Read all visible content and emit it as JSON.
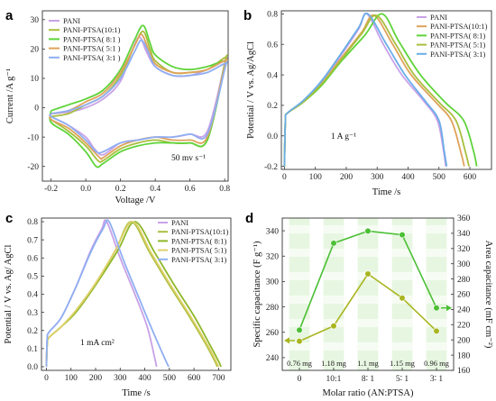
{
  "chart_data": [
    {
      "panel": "a",
      "type": "line",
      "xlabel": "Voltage /V",
      "ylabel": "Current /A g⁻¹",
      "xlim": [
        -0.25,
        0.82
      ],
      "ylim": [
        -25,
        33
      ],
      "xticks": [
        -0.2,
        0.0,
        0.2,
        0.4,
        0.6,
        0.8
      ],
      "yticks": [
        -20,
        -10,
        0,
        10,
        20,
        30
      ],
      "annotation": "50 mv s⁻¹",
      "legend_position": "top-left",
      "series": [
        {
          "name": "PANI",
          "color": "#c9a1e8",
          "upper": [
            [
              -0.2,
              -2
            ],
            [
              -0.1,
              -1.5
            ],
            [
              0.0,
              0
            ],
            [
              0.1,
              3
            ],
            [
              0.2,
              9
            ],
            [
              0.27,
              20
            ],
            [
              0.31,
              24
            ],
            [
              0.35,
              19
            ],
            [
              0.4,
              14
            ],
            [
              0.5,
              11
            ],
            [
              0.6,
              11
            ],
            [
              0.7,
              13
            ],
            [
              0.8,
              16
            ]
          ],
          "lower": [
            [
              0.8,
              15
            ],
            [
              0.7,
              -8
            ],
            [
              0.6,
              -9
            ],
            [
              0.5,
              -10
            ],
            [
              0.4,
              -10
            ],
            [
              0.3,
              -11
            ],
            [
              0.2,
              -12
            ],
            [
              0.1,
              -16
            ],
            [
              0.05,
              -14
            ],
            [
              0.0,
              -10
            ],
            [
              -0.1,
              -6
            ],
            [
              -0.2,
              -3
            ]
          ]
        },
        {
          "name": "PANI-PTSA(10:1)",
          "color": "#a8bf3c",
          "upper": [
            [
              -0.2,
              -3
            ],
            [
              -0.1,
              -2
            ],
            [
              0.0,
              1
            ],
            [
              0.1,
              4
            ],
            [
              0.2,
              11
            ],
            [
              0.28,
              21
            ],
            [
              0.33,
              26
            ],
            [
              0.37,
              20
            ],
            [
              0.4,
              16
            ],
            [
              0.5,
              12
            ],
            [
              0.6,
              12
            ],
            [
              0.7,
              13
            ],
            [
              0.8,
              17
            ]
          ],
          "lower": [
            [
              0.8,
              15
            ],
            [
              0.7,
              -11
            ],
            [
              0.6,
              -12
            ],
            [
              0.5,
              -12
            ],
            [
              0.4,
              -11
            ],
            [
              0.3,
              -12
            ],
            [
              0.2,
              -14
            ],
            [
              0.1,
              -18
            ],
            [
              0.07,
              -18
            ],
            [
              0.0,
              -13
            ],
            [
              -0.1,
              -8
            ],
            [
              -0.2,
              -4
            ]
          ]
        },
        {
          "name": "PANI-PTSA( 8:1 )",
          "color": "#5fd43a",
          "upper": [
            [
              -0.2,
              -1
            ],
            [
              -0.1,
              1
            ],
            [
              0.0,
              3
            ],
            [
              0.1,
              6
            ],
            [
              0.2,
              13
            ],
            [
              0.28,
              23
            ],
            [
              0.33,
              28
            ],
            [
              0.37,
              22
            ],
            [
              0.4,
              18
            ],
            [
              0.5,
              14
            ],
            [
              0.6,
              13
            ],
            [
              0.7,
              14
            ],
            [
              0.8,
              16
            ]
          ],
          "lower": [
            [
              0.8,
              14
            ],
            [
              0.7,
              -11
            ],
            [
              0.6,
              -12
            ],
            [
              0.5,
              -12
            ],
            [
              0.4,
              -12
            ],
            [
              0.3,
              -13
            ],
            [
              0.2,
              -15
            ],
            [
              0.1,
              -19
            ],
            [
              0.06,
              -20
            ],
            [
              0.0,
              -15
            ],
            [
              -0.1,
              -9
            ],
            [
              -0.2,
              -5
            ]
          ]
        },
        {
          "name": "PANI-PTSA( 5:1 )",
          "color": "#dfa25a",
          "upper": [
            [
              -0.2,
              -2
            ],
            [
              -0.1,
              -1
            ],
            [
              0.0,
              2
            ],
            [
              0.1,
              5
            ],
            [
              0.2,
              12
            ],
            [
              0.28,
              21
            ],
            [
              0.32,
              25
            ],
            [
              0.36,
              20
            ],
            [
              0.4,
              15
            ],
            [
              0.5,
              12
            ],
            [
              0.6,
              12
            ],
            [
              0.7,
              13
            ],
            [
              0.8,
              16
            ]
          ],
          "lower": [
            [
              0.8,
              14
            ],
            [
              0.7,
              -10
            ],
            [
              0.6,
              -11
            ],
            [
              0.5,
              -11
            ],
            [
              0.4,
              -10
            ],
            [
              0.3,
              -11
            ],
            [
              0.2,
              -13
            ],
            [
              0.1,
              -17
            ],
            [
              0.08,
              -17
            ],
            [
              0.0,
              -12
            ],
            [
              -0.1,
              -7
            ],
            [
              -0.2,
              -4
            ]
          ]
        },
        {
          "name": "PANI-PTSA( 3:1 )",
          "color": "#8faef2",
          "upper": [
            [
              -0.2,
              -2
            ],
            [
              -0.1,
              -1
            ],
            [
              0.0,
              1
            ],
            [
              0.1,
              4
            ],
            [
              0.2,
              10
            ],
            [
              0.28,
              19
            ],
            [
              0.32,
              23
            ],
            [
              0.36,
              19
            ],
            [
              0.4,
              14
            ],
            [
              0.5,
              11
            ],
            [
              0.6,
              11
            ],
            [
              0.7,
              12
            ],
            [
              0.8,
              15
            ]
          ],
          "lower": [
            [
              0.8,
              13
            ],
            [
              0.7,
              -9
            ],
            [
              0.6,
              -9
            ],
            [
              0.5,
              -10
            ],
            [
              0.4,
              -10
            ],
            [
              0.3,
              -11
            ],
            [
              0.2,
              -12
            ],
            [
              0.1,
              -15
            ],
            [
              0.06,
              -15
            ],
            [
              0.0,
              -11
            ],
            [
              -0.1,
              -6
            ],
            [
              -0.2,
              -3
            ]
          ]
        }
      ]
    },
    {
      "panel": "b",
      "type": "line",
      "xlabel": "Time /s",
      "ylabel": "Potential / V vs. Ag/AgCl",
      "xlim": [
        -10,
        670
      ],
      "ylim": [
        -0.22,
        0.82
      ],
      "xticks": [
        0,
        100,
        200,
        300,
        400,
        500,
        600
      ],
      "yticks": [
        -0.2,
        0.0,
        0.2,
        0.4,
        0.6,
        0.8
      ],
      "annotation": "1 A g⁻¹",
      "legend_position": "top-right",
      "series": [
        {
          "name": "PANI",
          "color": "#c9a1e8",
          "x": [
            0,
            3,
            10,
            60,
            120,
            180,
            240,
            267,
            320,
            380,
            450,
            495,
            515,
            522
          ],
          "y": [
            -0.2,
            0.1,
            0.15,
            0.22,
            0.35,
            0.52,
            0.7,
            0.8,
            0.6,
            0.4,
            0.23,
            0.1,
            -0.1,
            -0.2
          ]
        },
        {
          "name": "PANI-PTSA(10:1)",
          "color": "#dfa25a",
          "x": [
            0,
            3,
            10,
            60,
            120,
            180,
            250,
            290,
            350,
            410,
            490,
            540,
            570,
            582
          ],
          "y": [
            -0.2,
            0.1,
            0.15,
            0.22,
            0.34,
            0.5,
            0.68,
            0.79,
            0.6,
            0.4,
            0.22,
            0.1,
            -0.1,
            -0.2
          ]
        },
        {
          "name": "PANI-PTSA( 8:1)",
          "color": "#5fd43a",
          "x": [
            0,
            3,
            10,
            60,
            120,
            180,
            260,
            316,
            370,
            440,
            520,
            580,
            612,
            622
          ],
          "y": [
            -0.2,
            0.1,
            0.15,
            0.22,
            0.33,
            0.48,
            0.66,
            0.8,
            0.62,
            0.4,
            0.22,
            0.1,
            -0.1,
            -0.2
          ]
        },
        {
          "name": "PANI-PTSA( 5:1)",
          "color": "#a8bf3c",
          "x": [
            0,
            3,
            10,
            60,
            120,
            180,
            250,
            298,
            360,
            420,
            500,
            555,
            585,
            597
          ],
          "y": [
            -0.2,
            0.1,
            0.15,
            0.22,
            0.34,
            0.49,
            0.67,
            0.79,
            0.6,
            0.4,
            0.22,
            0.1,
            -0.1,
            -0.2
          ]
        },
        {
          "name": "PANI-PTSA( 3:1)",
          "color": "#6aaee8",
          "x": [
            0,
            3,
            10,
            60,
            120,
            180,
            240,
            270,
            330,
            390,
            455,
            500,
            517,
            525
          ],
          "y": [
            -0.2,
            0.1,
            0.15,
            0.23,
            0.36,
            0.53,
            0.71,
            0.8,
            0.6,
            0.4,
            0.23,
            0.1,
            -0.1,
            -0.2
          ]
        }
      ]
    },
    {
      "panel": "c",
      "type": "line",
      "xlabel": "Time /s",
      "ylabel": "Potential / V vs. Ag/ AgCl",
      "xlim": [
        -20,
        750
      ],
      "ylim": [
        -0.02,
        0.82
      ],
      "xticks": [
        0,
        100,
        200,
        300,
        400,
        500,
        600,
        700
      ],
      "yticks": [
        0.0,
        0.1,
        0.2,
        0.3,
        0.4,
        0.5,
        0.6,
        0.7,
        0.8
      ],
      "annotation": "1 mA cm²",
      "legend_position": "top-right",
      "series": [
        {
          "name": "PANI",
          "color": "#c9a1e8",
          "x": [
            0,
            3,
            10,
            60,
            120,
            180,
            225,
            245,
            300,
            360,
            410,
            440,
            448
          ],
          "y": [
            0.0,
            0.15,
            0.19,
            0.27,
            0.44,
            0.64,
            0.76,
            0.8,
            0.6,
            0.4,
            0.22,
            0.05,
            0.0
          ]
        },
        {
          "name": "PANI-PTSA(10:1)",
          "color": "#a8bf3c",
          "x": [
            0,
            3,
            10,
            60,
            120,
            200,
            280,
            345,
            420,
            500,
            580,
            650,
            685,
            695
          ],
          "y": [
            0.0,
            0.12,
            0.16,
            0.22,
            0.31,
            0.46,
            0.64,
            0.8,
            0.63,
            0.45,
            0.28,
            0.12,
            0.03,
            0.0
          ]
        },
        {
          "name": "PANI-PTSA( 8:1)",
          "color": "#8fb82a",
          "x": [
            0,
            3,
            10,
            60,
            120,
            200,
            290,
            360,
            440,
            520,
            600,
            665,
            700,
            710
          ],
          "y": [
            0.0,
            0.12,
            0.16,
            0.22,
            0.3,
            0.45,
            0.64,
            0.8,
            0.63,
            0.45,
            0.28,
            0.12,
            0.03,
            0.0
          ]
        },
        {
          "name": "PANI-PTSA( 5:1)",
          "color": "#dfd06a",
          "x": [
            0,
            3,
            10,
            60,
            120,
            200,
            280,
            350,
            425,
            505,
            585,
            655,
            690,
            700
          ],
          "y": [
            0.0,
            0.12,
            0.16,
            0.22,
            0.31,
            0.46,
            0.64,
            0.8,
            0.63,
            0.45,
            0.28,
            0.12,
            0.03,
            0.0
          ]
        },
        {
          "name": "PANI-PTSA( 3:1)",
          "color": "#8faef2",
          "x": [
            0,
            3,
            10,
            60,
            120,
            180,
            230,
            255,
            310,
            370,
            425,
            470,
            490,
            497
          ],
          "y": [
            0.0,
            0.15,
            0.19,
            0.27,
            0.44,
            0.63,
            0.76,
            0.8,
            0.6,
            0.4,
            0.22,
            0.08,
            0.02,
            0.0
          ]
        }
      ]
    },
    {
      "panel": "d",
      "type": "line",
      "xlabel": "Molar ratio (AN:PTSA)",
      "ylabel": "Specific capacitance (F g⁻¹)",
      "ylabel_right": "Area capacitance (mF cm⁻²)",
      "categories": [
        "0",
        "10:1",
        "8∶ 1",
        "5∶ 1",
        "3∶ 1"
      ],
      "mass_labels": [
        "0.76 mg",
        "1.18 mg",
        "1.1 mg",
        "1.15 mg",
        "0.96 mg"
      ],
      "ylim": [
        230,
        350
      ],
      "yticks": [
        240,
        260,
        280,
        300,
        320,
        340
      ],
      "ylim_right": [
        160,
        360
      ],
      "yticks_right": [
        160,
        180,
        200,
        220,
        240,
        260,
        280,
        300,
        320,
        340,
        360
      ],
      "series": [
        {
          "axis": "left",
          "color": "#a9b51f",
          "values": [
            253,
            265,
            306,
            287,
            261
          ]
        },
        {
          "axis": "right",
          "color": "#4bbf34",
          "values": [
            213,
            327,
            343,
            338,
            242
          ]
        }
      ]
    }
  ],
  "panel_letters": [
    "a",
    "b",
    "c",
    "d"
  ]
}
